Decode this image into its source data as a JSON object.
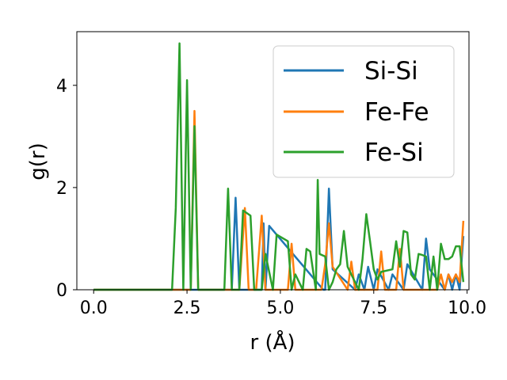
{
  "chart_data": {
    "type": "line",
    "xlabel": "r (Å)",
    "ylabel": "g(r)",
    "xlim": [
      -0.45,
      10.05
    ],
    "ylim": [
      0,
      5.05
    ],
    "xticks": [
      0.0,
      2.5,
      5.0,
      7.5,
      10.0
    ],
    "xtick_labels": [
      "0.0",
      "2.5",
      "5.0",
      "7.5",
      "10.0"
    ],
    "yticks": [
      0,
      2,
      4
    ],
    "ytick_labels": [
      "0",
      "2",
      "4"
    ],
    "grid": false,
    "legend_position": "top-right",
    "series": [
      {
        "name": "Si-Si",
        "color": "#1f77b4",
        "x": [
          0.0,
          3.7,
          3.8,
          3.9,
          4.0,
          4.5,
          4.55,
          4.6,
          4.7,
          6.15,
          6.2,
          6.3,
          6.4,
          7.0,
          7.1,
          7.25,
          7.35,
          7.5,
          7.6,
          7.9,
          8.0,
          8.3,
          8.4,
          8.8,
          8.9,
          9.0,
          9.4,
          9.5,
          9.6,
          9.7,
          9.8,
          9.9
        ],
        "values": [
          0,
          0,
          1.8,
          0,
          0,
          0,
          1.3,
          0,
          1.25,
          0,
          0,
          1.98,
          0.4,
          0,
          0.3,
          0,
          0.45,
          0,
          0.4,
          0,
          0.3,
          0,
          0.5,
          0,
          1.0,
          0.4,
          0,
          0.3,
          0,
          0.3,
          0,
          1.05
        ]
      },
      {
        "name": "Fe-Fe",
        "color": "#ff7f0e",
        "x": [
          0.0,
          2.6,
          2.7,
          2.8,
          3.9,
          4.05,
          4.15,
          4.35,
          4.5,
          4.6,
          5.2,
          5.3,
          5.4,
          6.1,
          6.2,
          6.3,
          6.4,
          6.8,
          6.9,
          7.0,
          7.6,
          7.7,
          7.8,
          8.1,
          8.2,
          8.3,
          9.2,
          9.3,
          9.4,
          9.5,
          9.6,
          9.7,
          9.8,
          9.9
        ],
        "values": [
          0,
          0,
          3.5,
          0,
          0,
          1.6,
          0,
          0,
          1.45,
          0,
          0,
          0.9,
          0,
          0,
          0.5,
          1.3,
          0.45,
          0,
          0.55,
          0,
          0,
          0.75,
          0,
          0,
          0.8,
          0,
          0,
          0.3,
          0,
          0.3,
          0.15,
          0.3,
          0.15,
          1.35
        ]
      },
      {
        "name": "Fe-Si",
        "color": "#2ca02c",
        "x": [
          0.0,
          2.1,
          2.2,
          2.3,
          2.4,
          2.5,
          2.6,
          2.7,
          2.8,
          3.5,
          3.6,
          3.7,
          3.9,
          4.0,
          4.2,
          4.3,
          4.5,
          4.6,
          4.8,
          4.9,
          5.2,
          5.3,
          5.4,
          5.6,
          5.7,
          5.8,
          5.95,
          6.0,
          6.05,
          6.2,
          6.3,
          6.4,
          6.5,
          6.6,
          6.7,
          6.8,
          7.1,
          7.2,
          7.3,
          7.4,
          7.5,
          7.6,
          7.7,
          8.0,
          8.1,
          8.2,
          8.3,
          8.4,
          8.5,
          8.6,
          8.7,
          8.8,
          8.9,
          9.0,
          9.1,
          9.2,
          9.3,
          9.4,
          9.5,
          9.6,
          9.7,
          9.8,
          9.9
        ],
        "values": [
          0,
          0,
          1.6,
          4.82,
          0,
          4.1,
          0,
          3.2,
          0,
          0,
          1.98,
          0,
          0,
          1.55,
          1.45,
          0,
          0,
          0.7,
          0,
          1.08,
          0.95,
          0,
          0.3,
          0,
          0.8,
          0.75,
          0,
          2.15,
          0.7,
          0.65,
          0,
          0.15,
          0.4,
          0.5,
          1.15,
          0.45,
          0,
          0.6,
          1.48,
          0.95,
          0.4,
          0.2,
          0.35,
          0.4,
          0.95,
          0.45,
          1.15,
          1.12,
          0.3,
          0.2,
          0.7,
          0.68,
          0.65,
          0,
          0.65,
          0,
          0.9,
          0.6,
          0.6,
          0.65,
          0.85,
          0.85,
          0.15
        ]
      }
    ]
  }
}
